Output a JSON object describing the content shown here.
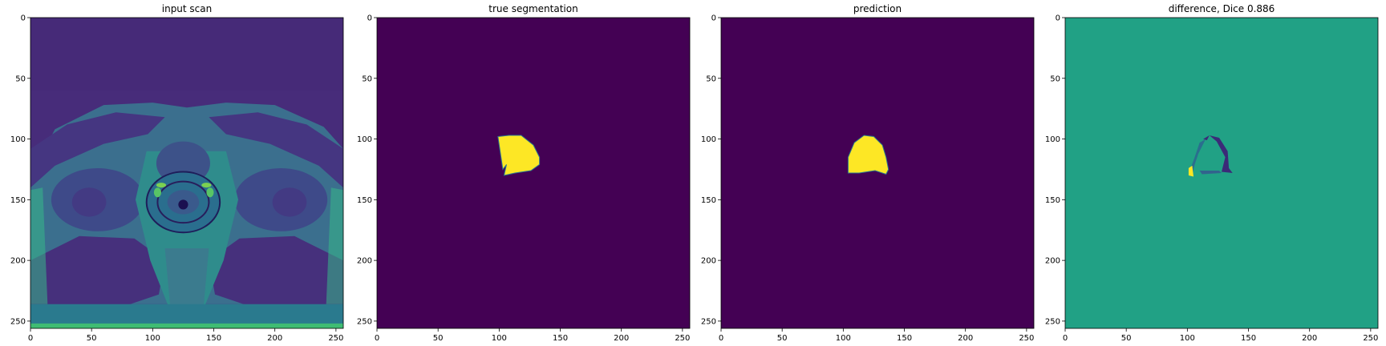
{
  "chart_data": [
    {
      "type": "heatmap",
      "title": "input scan",
      "content": "mri",
      "colormap": "viridis",
      "xlim": [
        0,
        256
      ],
      "ylim": [
        256,
        0
      ],
      "xticks": [
        0,
        50,
        100,
        150,
        200,
        250
      ],
      "yticks": [
        0,
        50,
        100,
        150,
        200,
        250
      ],
      "grid": false
    },
    {
      "type": "heatmap",
      "title": "true segmentation",
      "content": "mask",
      "colormap": "viridis",
      "background": "#440154",
      "foreground": "#fde725",
      "region": [
        [
          99,
          98
        ],
        [
          108,
          97
        ],
        [
          118,
          97
        ],
        [
          128,
          105
        ],
        [
          133,
          115
        ],
        [
          133,
          121
        ],
        [
          126,
          126
        ],
        [
          113,
          128
        ],
        [
          104,
          130
        ],
        [
          106,
          121
        ],
        [
          103,
          125
        ]
      ],
      "xlim": [
        0,
        256
      ],
      "ylim": [
        256,
        0
      ],
      "xticks": [
        0,
        50,
        100,
        150,
        200,
        250
      ],
      "yticks": [
        0,
        50,
        100,
        150,
        200,
        250
      ],
      "grid": false
    },
    {
      "type": "heatmap",
      "title": "prediction",
      "content": "mask",
      "colormap": "viridis",
      "background": "#440154",
      "foreground": "#fde725",
      "region": [
        [
          104,
          128
        ],
        [
          104,
          115
        ],
        [
          109,
          103
        ],
        [
          117,
          97
        ],
        [
          125,
          98
        ],
        [
          132,
          105
        ],
        [
          135,
          115
        ],
        [
          137,
          125
        ],
        [
          135,
          129
        ],
        [
          126,
          126
        ],
        [
          113,
          128
        ]
      ],
      "xlim": [
        0,
        256
      ],
      "ylim": [
        256,
        0
      ],
      "xticks": [
        0,
        50,
        100,
        150,
        200,
        250
      ],
      "yticks": [
        0,
        50,
        100,
        150,
        200,
        250
      ],
      "grid": false
    },
    {
      "type": "heatmap",
      "title": "difference, Dice 0.886",
      "content": "difference",
      "colormap": "viridis",
      "background": "#21a185",
      "xlim": [
        0,
        256
      ],
      "ylim": [
        256,
        0
      ],
      "xticks": [
        0,
        50,
        100,
        150,
        200,
        250
      ],
      "yticks": [
        0,
        50,
        100,
        150,
        200,
        250
      ],
      "grid": false
    }
  ]
}
